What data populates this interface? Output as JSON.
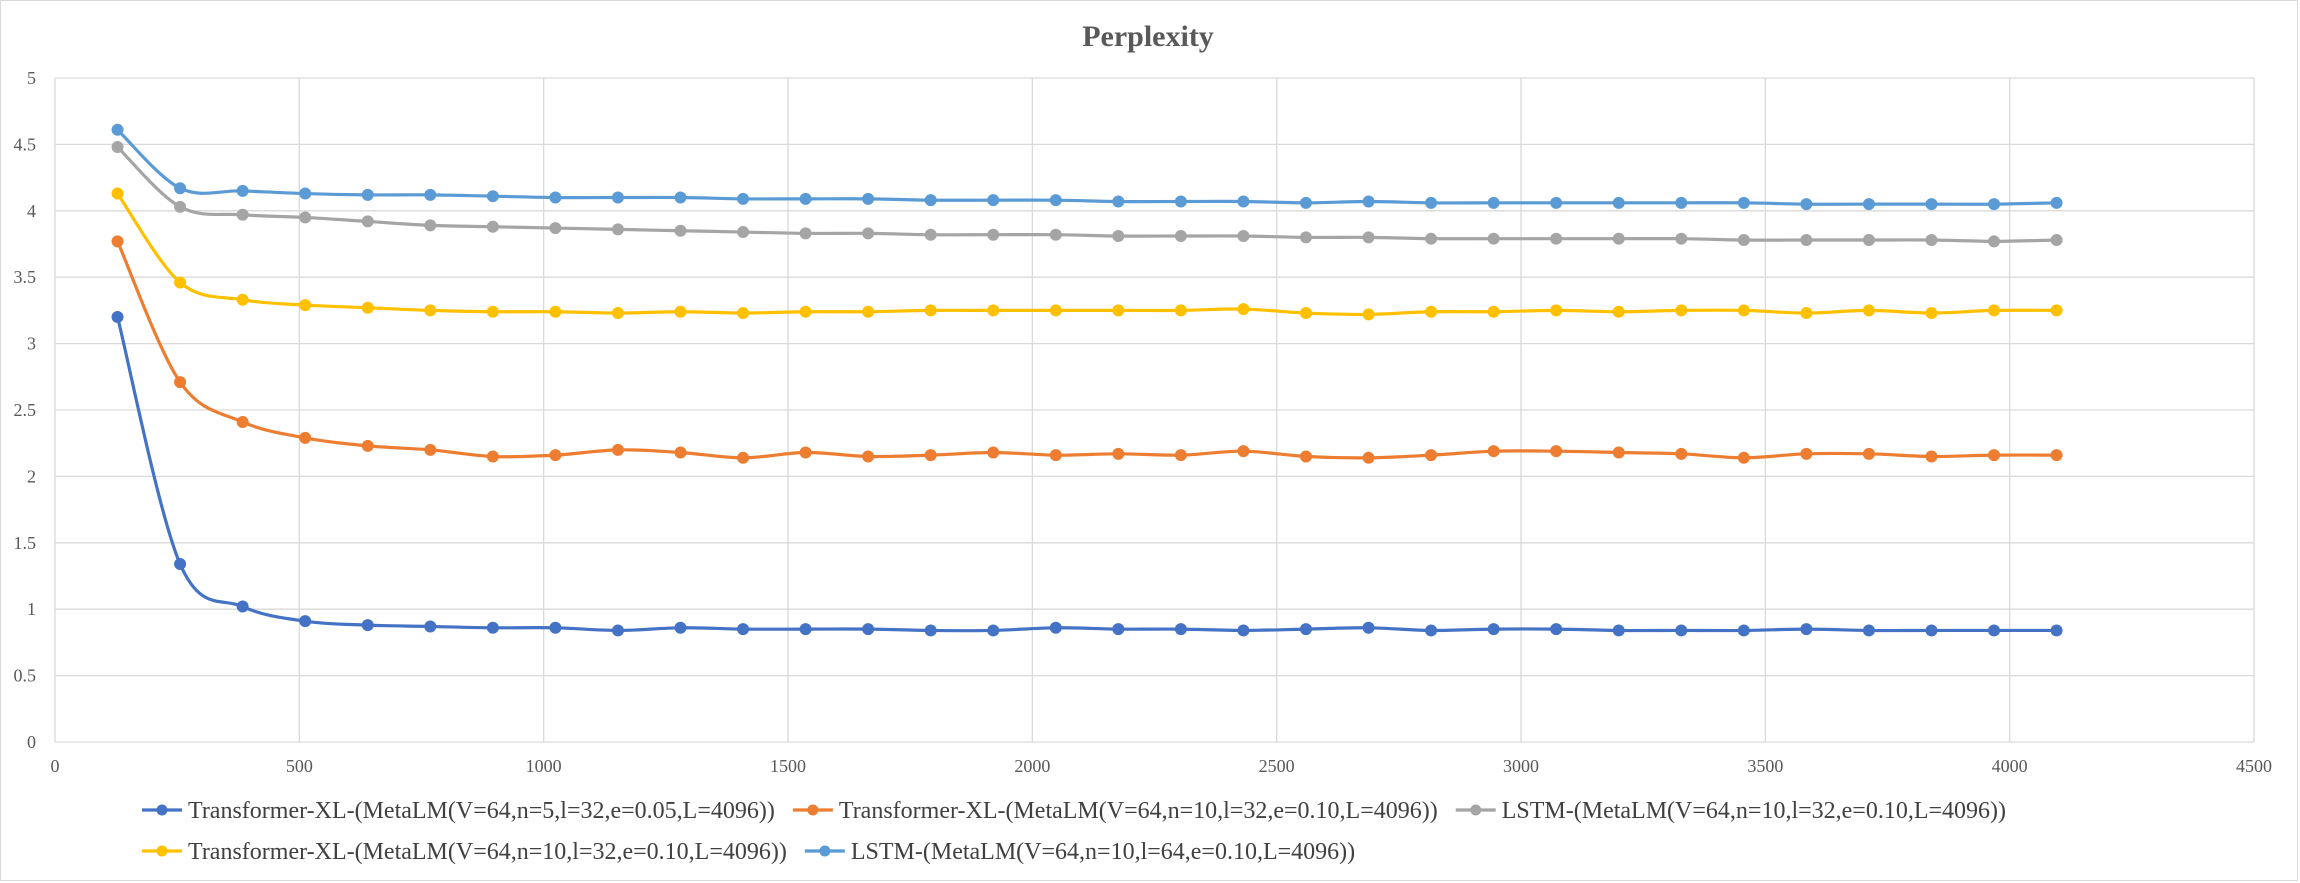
{
  "chart_data": {
    "type": "line",
    "title": "Perplexity",
    "xlabel": "",
    "ylabel": "",
    "xlim": [
      0,
      4500
    ],
    "ylim": [
      0,
      5
    ],
    "x_ticks": [
      0,
      500,
      1000,
      1500,
      2000,
      2500,
      3000,
      3500,
      4000,
      4500
    ],
    "y_ticks": [
      0,
      0.5,
      1,
      1.5,
      2,
      2.5,
      3,
      3.5,
      4,
      4.5,
      5
    ],
    "y_tick_labels": [
      "0",
      "0.5",
      "1",
      "1.5",
      "2",
      "2.5",
      "3",
      "3.5",
      "4",
      "4.5",
      "5"
    ],
    "grid": true,
    "legend_position": "bottom",
    "x": [
      128,
      256,
      384,
      512,
      640,
      768,
      896,
      1024,
      1152,
      1280,
      1408,
      1536,
      1664,
      1792,
      1920,
      2048,
      2176,
      2304,
      2432,
      2560,
      2688,
      2816,
      2944,
      3072,
      3200,
      3328,
      3456,
      3584,
      3712,
      3840,
      3968,
      4096
    ],
    "series": [
      {
        "name": "Transformer-XL-(MetaLM(V=64,n=5,l=32,e=0.05,L=4096))",
        "color": "#4472c4",
        "values": [
          3.2,
          1.34,
          1.02,
          0.91,
          0.88,
          0.87,
          0.86,
          0.86,
          0.84,
          0.86,
          0.85,
          0.85,
          0.85,
          0.84,
          0.84,
          0.86,
          0.85,
          0.85,
          0.84,
          0.85,
          0.86,
          0.84,
          0.85,
          0.85,
          0.84,
          0.84,
          0.84,
          0.85,
          0.84,
          0.84,
          0.84,
          0.84
        ]
      },
      {
        "name": "Transformer-XL-(MetaLM(V=64,n=10,l=32,e=0.10,L=4096))",
        "color": "#ed7d31",
        "values": [
          3.77,
          2.71,
          2.41,
          2.29,
          2.23,
          2.2,
          2.15,
          2.16,
          2.2,
          2.18,
          2.14,
          2.18,
          2.15,
          2.16,
          2.18,
          2.16,
          2.17,
          2.16,
          2.19,
          2.15,
          2.14,
          2.16,
          2.19,
          2.19,
          2.18,
          2.17,
          2.14,
          2.17,
          2.17,
          2.15,
          2.16,
          2.16
        ]
      },
      {
        "name": "LSTM-(MetaLM(V=64,n=10,l=32,e=0.10,L=4096))",
        "color": "#a5a5a5",
        "values": [
          4.48,
          4.03,
          3.97,
          3.95,
          3.92,
          3.89,
          3.88,
          3.87,
          3.86,
          3.85,
          3.84,
          3.83,
          3.83,
          3.82,
          3.82,
          3.82,
          3.81,
          3.81,
          3.81,
          3.8,
          3.8,
          3.79,
          3.79,
          3.79,
          3.79,
          3.79,
          3.78,
          3.78,
          3.78,
          3.78,
          3.77,
          3.78
        ]
      },
      {
        "name": "Transformer-XL-(MetaLM(V=64,n=10,l=32,e=0.10,L=4096))",
        "color": "#ffc000",
        "values": [
          4.13,
          3.46,
          3.33,
          3.29,
          3.27,
          3.25,
          3.24,
          3.24,
          3.23,
          3.24,
          3.23,
          3.24,
          3.24,
          3.25,
          3.25,
          3.25,
          3.25,
          3.25,
          3.26,
          3.23,
          3.22,
          3.24,
          3.24,
          3.25,
          3.24,
          3.25,
          3.25,
          3.23,
          3.25,
          3.23,
          3.25,
          3.25
        ]
      },
      {
        "name": "LSTM-(MetaLM(V=64,n=10,l=64,e=0.10,L=4096))",
        "color": "#5b9bd5",
        "values": [
          4.61,
          4.17,
          4.15,
          4.13,
          4.12,
          4.12,
          4.11,
          4.1,
          4.1,
          4.1,
          4.09,
          4.09,
          4.09,
          4.08,
          4.08,
          4.08,
          4.07,
          4.07,
          4.07,
          4.06,
          4.07,
          4.06,
          4.06,
          4.06,
          4.06,
          4.06,
          4.06,
          4.05,
          4.05,
          4.05,
          4.05,
          4.06
        ]
      }
    ]
  }
}
